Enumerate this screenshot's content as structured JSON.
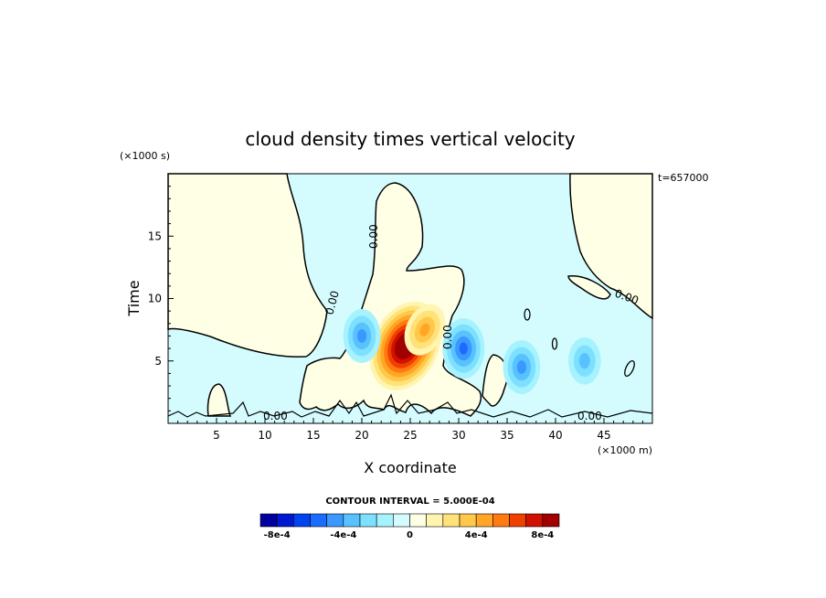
{
  "chart_data": {
    "type": "heatmap",
    "title": "cloud density times vertical velocity",
    "xlabel": "X coordinate",
    "ylabel": "Time",
    "x_unit": "(×1000 m)",
    "y_unit": "(×1000 s)",
    "annotation": "t=657000",
    "xlim": [
      0,
      50
    ],
    "ylim": [
      0,
      20
    ],
    "x_ticks": [
      5,
      10,
      15,
      20,
      25,
      30,
      35,
      40,
      45
    ],
    "y_ticks": [
      5,
      10,
      15
    ],
    "contour_interval_text": "CONTOUR INTERVAL = 5.000E-04",
    "zero_contour_label": "0.00",
    "colorbar": {
      "tick_labels": [
        "-8e-4",
        "-4e-4",
        "0",
        "4e-4",
        "8e-4"
      ],
      "tick_values": [
        -0.0008,
        -0.0004,
        0,
        0.0004,
        0.0008
      ],
      "colors": [
        "#0000a0",
        "#0018d0",
        "#0044f0",
        "#1a6cff",
        "#3a98ff",
        "#58c2ff",
        "#7ee0ff",
        "#a6f2ff",
        "#d4fcff",
        "#ffffe6",
        "#fff4b0",
        "#ffe27a",
        "#ffc84a",
        "#ffa626",
        "#ff7a10",
        "#f04000",
        "#d01000",
        "#a00000"
      ]
    },
    "features": [
      {
        "x": 24.5,
        "y": 6.2,
        "value": 0.00095
      },
      {
        "x": 26.5,
        "y": 7.5,
        "value": 0.0004
      },
      {
        "x": 20,
        "y": 7,
        "value": -0.0004
      },
      {
        "x": 30.5,
        "y": 6,
        "value": -0.0005
      },
      {
        "x": 36.5,
        "y": 4.5,
        "value": -0.0004
      },
      {
        "x": 43,
        "y": 5,
        "value": -0.0003
      }
    ]
  }
}
